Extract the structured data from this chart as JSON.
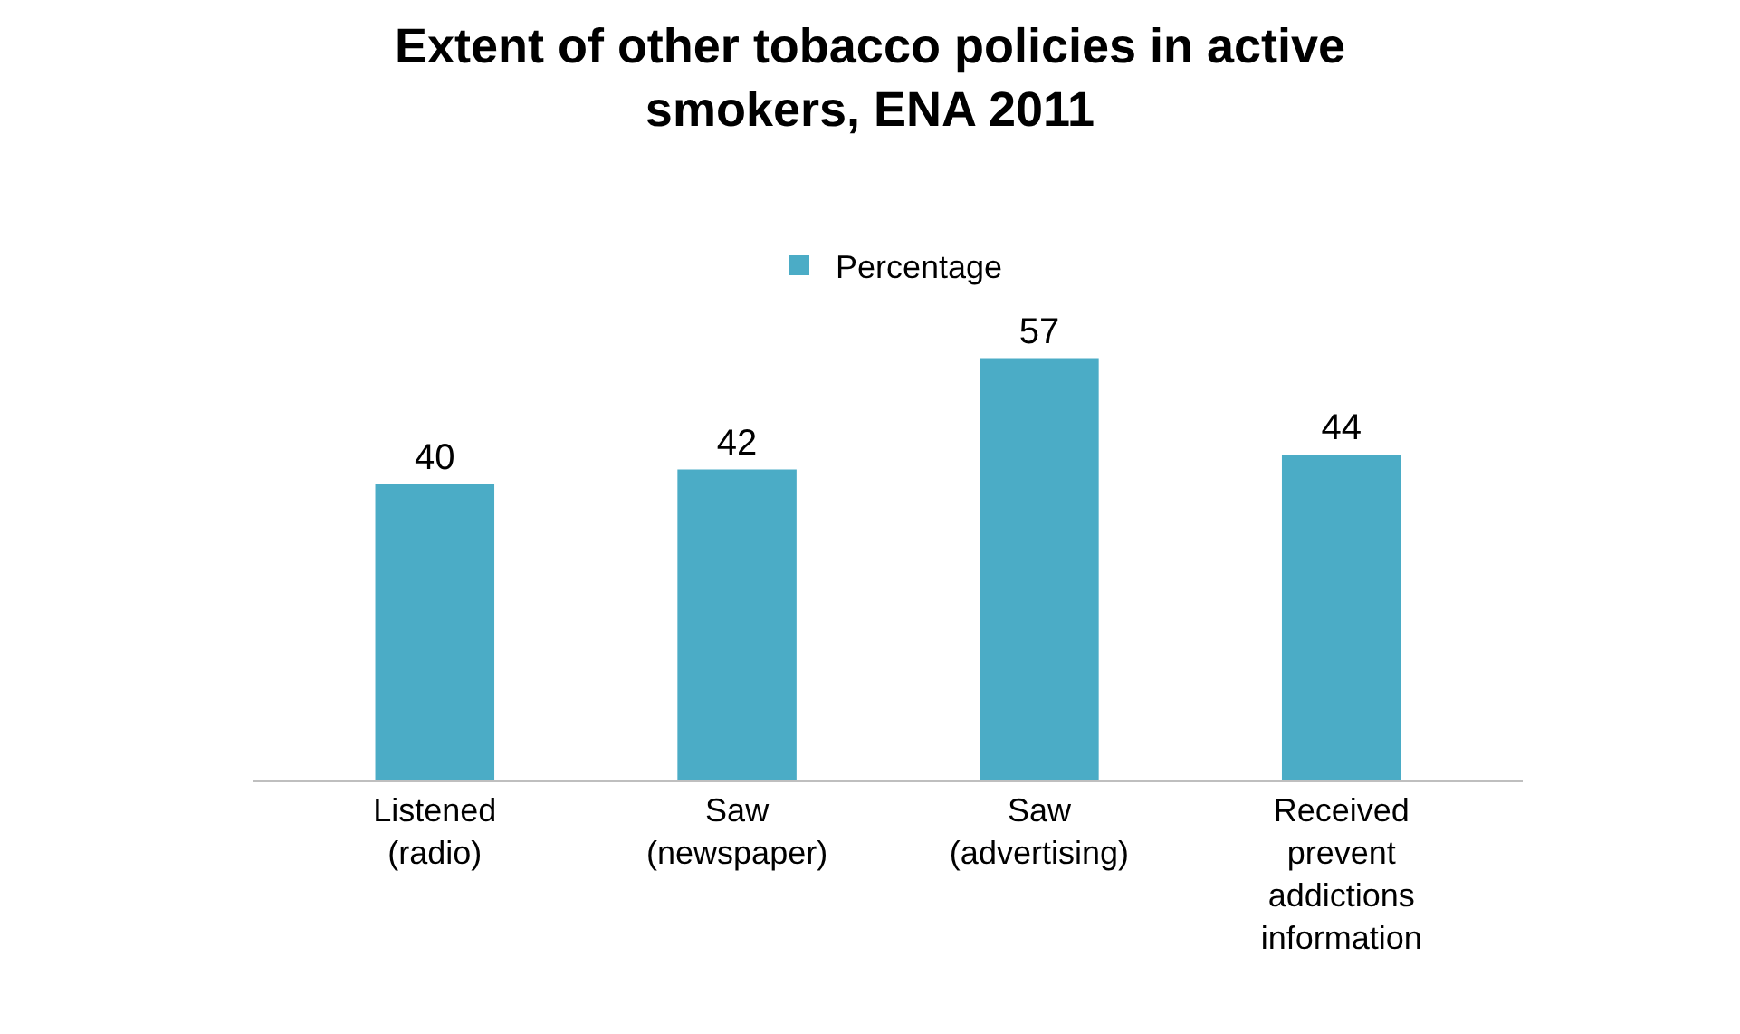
{
  "chart_data": {
    "type": "bar",
    "title": "Extent of other tobacco policies in active smokers, ENA 2011",
    "categories": [
      "Listened (radio)",
      "Saw (newspaper)",
      "Saw (advertising)",
      "Received prevent addictions information"
    ],
    "series": [
      {
        "name": "Percentage",
        "color": "#4bacc6",
        "values": [
          40,
          42,
          57,
          44
        ]
      }
    ],
    "data_labels": true,
    "legend": "top"
  }
}
